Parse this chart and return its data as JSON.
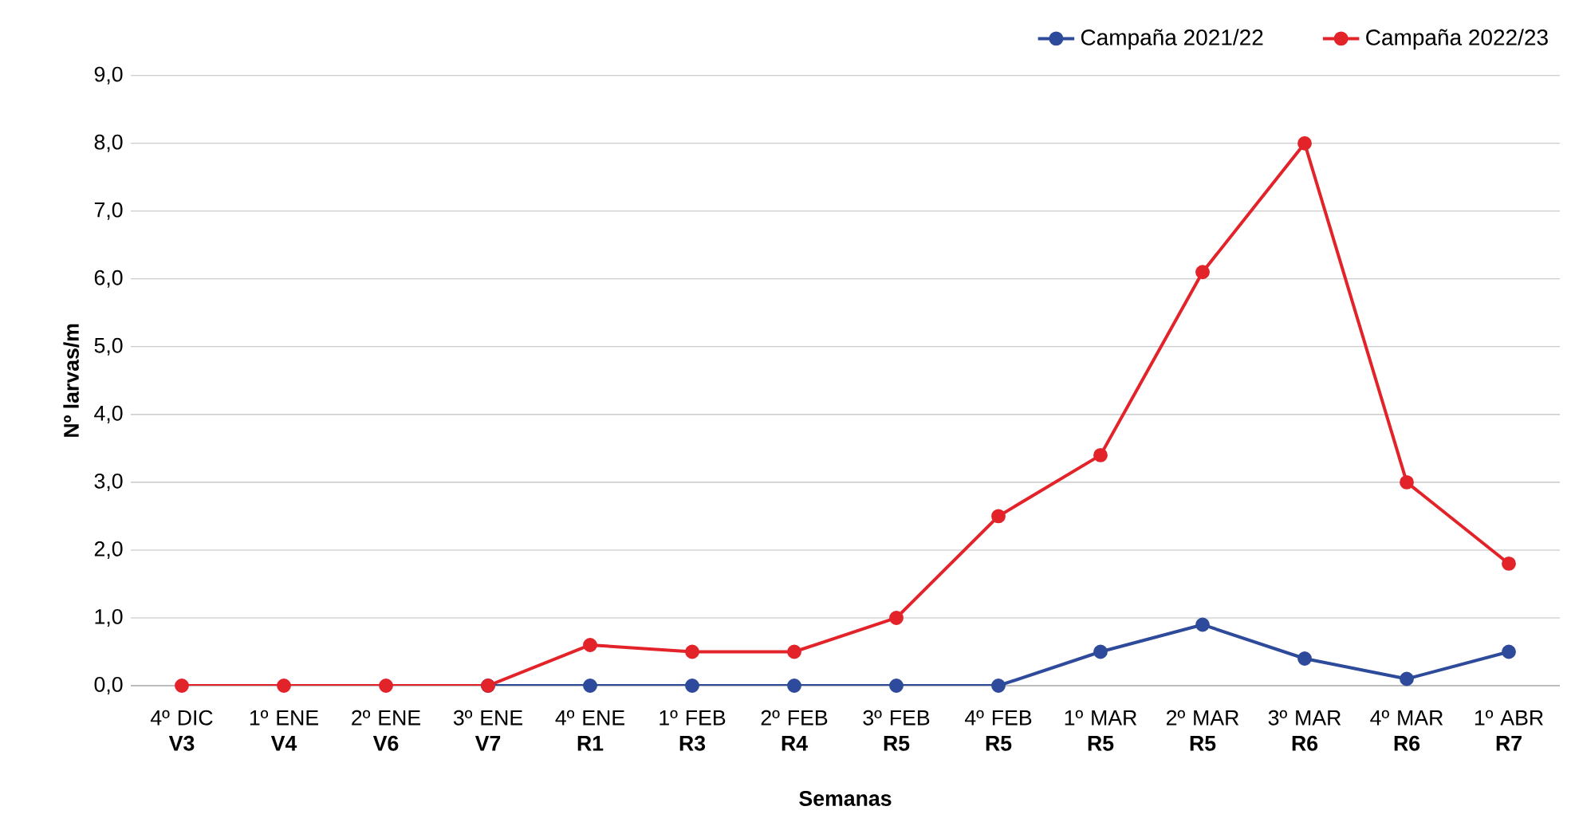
{
  "chart_data": {
    "type": "line",
    "xlabel": "Semanas",
    "ylabel": "Nº larvas/m",
    "categories": [
      "4º DIC **V3**",
      "1º ENE **V4**",
      "2º ENE **V6**",
      "3º ENE **V7**",
      "4º ENE **R1**",
      "1º FEB **R3**",
      "2º FEB **R4**",
      "3º FEB **R5**",
      "4º FEB **R5**",
      "1º MAR **R5**",
      "2º MAR **R5**",
      "3º MAR **R6**",
      "4º MAR **R6**",
      "1º ABR **R7**"
    ],
    "series": [
      {
        "name": "Campaña 2021/22",
        "color": "#2e4a9a",
        "values": [
          null,
          null,
          null,
          0,
          0,
          0,
          0,
          0,
          0,
          0.5,
          0.9,
          0.4,
          0.1,
          0.5
        ]
      },
      {
        "name": "Campaña 2022/23",
        "color": "#e3232a",
        "values": [
          0,
          0,
          0,
          0,
          0.6,
          0.5,
          0.5,
          1.0,
          2.5,
          3.4,
          6.1,
          8.0,
          3.0,
          1.8
        ]
      }
    ],
    "ylim": [
      0,
      9
    ],
    "yticks": [
      {
        "value": 0,
        "label": "0,0"
      },
      {
        "value": 1,
        "label": "1,0"
      },
      {
        "value": 2,
        "label": "2,0"
      },
      {
        "value": 3,
        "label": "3,0"
      },
      {
        "value": 4,
        "label": "4,0"
      },
      {
        "value": 5,
        "label": "5,0"
      },
      {
        "value": 6,
        "label": "6,0"
      },
      {
        "value": 7,
        "label": "7,0"
      },
      {
        "value": 8,
        "label": "8,0"
      },
      {
        "value": 9,
        "label": "9,0"
      }
    ],
    "grid": "y",
    "legend": "top right",
    "marker": "circle",
    "line_style": "solid"
  }
}
